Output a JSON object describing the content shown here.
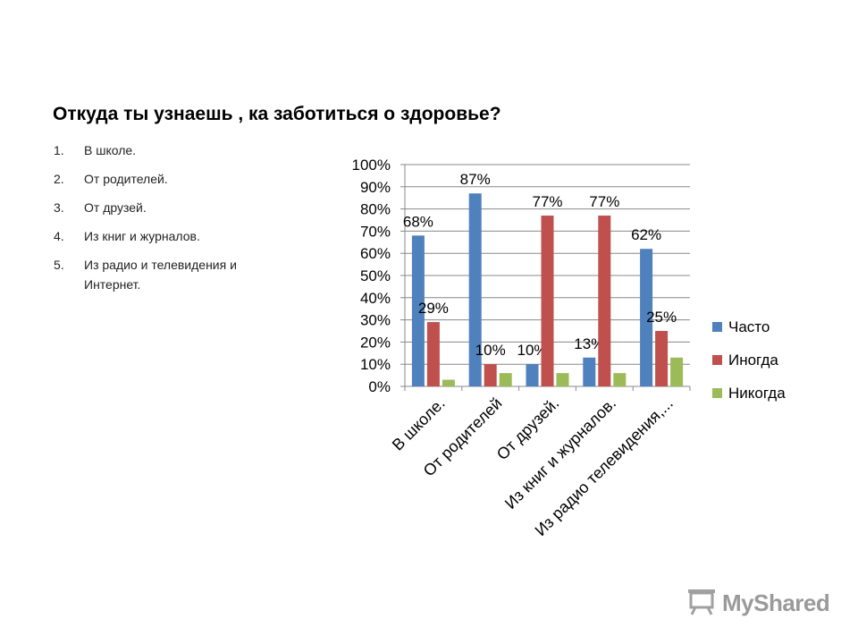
{
  "slide": {
    "title": "Откуда ты узнаешь , ка заботиться о  здоровье?",
    "list": [
      {
        "num": "1.",
        "text": "В школе."
      },
      {
        "num": "2.",
        "text": "От родителей."
      },
      {
        "num": "3.",
        "text": "От друзей."
      },
      {
        "num": "4.",
        "text": "Из книг и журналов."
      },
      {
        "num": "5.",
        "text": "Из радио и телевидения и Интернет."
      }
    ]
  },
  "watermark": {
    "text": "MyShared",
    "icon": "projector-icon"
  },
  "chart_data": {
    "type": "bar",
    "title": "",
    "xlabel": "",
    "ylabel": "",
    "categories": [
      "В школе.",
      "От родителей",
      "От друзей.",
      "Из книг и журналов.",
      "Из радио телевидения,..."
    ],
    "series": [
      {
        "name": "Часто",
        "color": "#4F81BD",
        "values": [
          68,
          87,
          10,
          13,
          62
        ],
        "labels": [
          "68%",
          "87%",
          "10%",
          "13%",
          "62%"
        ]
      },
      {
        "name": "Иногда",
        "color": "#C0504D",
        "values": [
          29,
          10,
          77,
          77,
          25
        ],
        "labels": [
          "29%",
          "10%",
          "77%",
          "77%",
          "25%"
        ]
      },
      {
        "name": "Никогда",
        "color": "#9BBB59",
        "values": [
          3,
          6,
          6,
          6,
          13
        ],
        "labels": [
          "",
          "",
          "",
          "",
          ""
        ]
      }
    ],
    "yticks": [
      "0%",
      "10%",
      "20%",
      "30%",
      "40%",
      "50%",
      "60%",
      "70%",
      "80%",
      "90%",
      "100%"
    ],
    "ylim": [
      0,
      100
    ],
    "grid": true,
    "legend": "right"
  }
}
